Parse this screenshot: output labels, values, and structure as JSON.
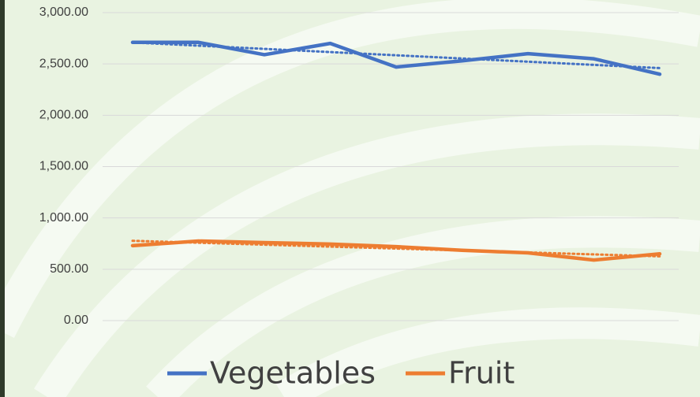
{
  "chart_data": {
    "type": "line",
    "categories": [
      null,
      null,
      null,
      null,
      null,
      null,
      null,
      null,
      null
    ],
    "series": [
      {
        "name": "Vegetables",
        "color": "#4472c4",
        "values": [
          2710,
          2710,
          2590,
          2700,
          2470,
          2530,
          2600,
          2550,
          2400
        ]
      },
      {
        "name": "Fruit",
        "color": "#ed7d31",
        "values": [
          730,
          775,
          760,
          745,
          720,
          685,
          660,
          590,
          650
        ]
      }
    ],
    "trendline": true,
    "ylim": [
      0,
      3000
    ],
    "yticks": [
      {
        "value": 0,
        "label": "0.00"
      },
      {
        "value": 500,
        "label": "500.00"
      },
      {
        "value": 1000,
        "label": "1,000.00"
      },
      {
        "value": 1500,
        "label": "1,500.00"
      },
      {
        "value": 2000,
        "label": "2,000.00"
      },
      {
        "value": 2500,
        "label": "2,500.00"
      },
      {
        "value": 3000,
        "label": "3,000.00"
      }
    ],
    "grid": true,
    "legend": "bottom"
  }
}
